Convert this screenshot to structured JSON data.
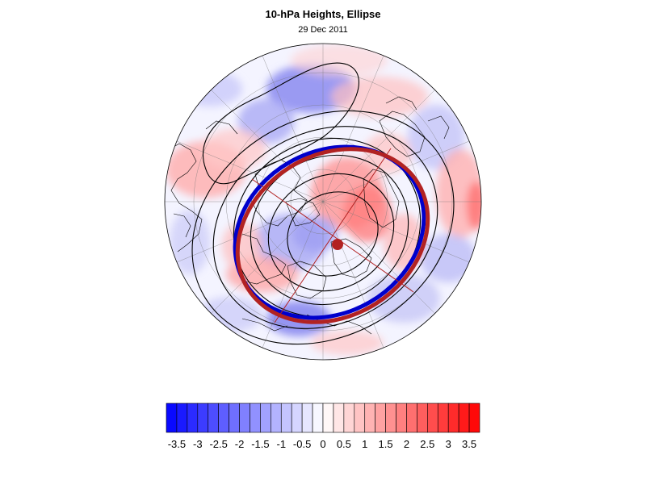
{
  "title": "10-hPa Heights, Ellipse",
  "subtitle": "29 Dec 2011",
  "palette": {
    "negative_color": "#0000ff",
    "positive_color": "#ff0000",
    "neutral_color": "#ffffff",
    "ellipse_observed_color": "#0000cc",
    "ellipse_fit_color": "#b22222",
    "contour_color": "#000000"
  },
  "map": {
    "projection": "north-polar-stereographic",
    "features": [
      "coastlines",
      "latitude-longitude-grid",
      "geopotential-height-contours",
      "anomaly-shading"
    ],
    "ellipse_center_marker": "filled-circle"
  },
  "colorbar": {
    "levels": [
      -3.75,
      -3.5,
      -3.25,
      -3,
      -2.75,
      -2.5,
      -2.25,
      -2,
      -1.75,
      -1.5,
      -1.25,
      -1,
      -0.75,
      -0.5,
      -0.25,
      0,
      0.25,
      0.5,
      0.75,
      1,
      1.25,
      1.5,
      1.75,
      2,
      2.25,
      2.5,
      2.75,
      3,
      3.25,
      3.5,
      3.75
    ],
    "tick_labels": [
      "-3.5",
      "-3",
      "-2.5",
      "-2",
      "-1.5",
      "-1",
      "-0.5",
      "0",
      "0.5",
      "1",
      "1.5",
      "2",
      "2.5",
      "3",
      "3.5"
    ]
  }
}
